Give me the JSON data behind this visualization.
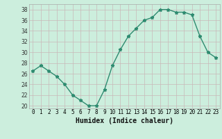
{
  "x": [
    0,
    1,
    2,
    3,
    4,
    5,
    6,
    7,
    8,
    9,
    10,
    11,
    12,
    13,
    14,
    15,
    16,
    17,
    18,
    19,
    20,
    21,
    22,
    23
  ],
  "y": [
    26.5,
    27.5,
    26.5,
    25.5,
    24,
    22,
    21,
    20,
    20,
    23,
    27.5,
    30.5,
    33,
    34.5,
    36,
    36.5,
    38,
    38,
    37.5,
    37.5,
    37,
    33,
    30,
    29
  ],
  "xlabel": "Humidex (Indice chaleur)",
  "ylim": [
    19.5,
    39
  ],
  "xlim": [
    -0.5,
    23.5
  ],
  "yticks": [
    20,
    22,
    24,
    26,
    28,
    30,
    32,
    34,
    36,
    38
  ],
  "xtick_labels": [
    "0",
    "1",
    "2",
    "3",
    "4",
    "5",
    "6",
    "7",
    "8",
    "9",
    "10",
    "11",
    "12",
    "13",
    "14",
    "15",
    "16",
    "17",
    "18",
    "19",
    "20",
    "21",
    "22",
    "23"
  ],
  "line_color": "#2e8b70",
  "marker": "*",
  "marker_size": 3.5,
  "bg_color": "#cceedd",
  "grid_color_major": "#c8b8b8",
  "label_fontsize": 7,
  "tick_fontsize": 5.5
}
